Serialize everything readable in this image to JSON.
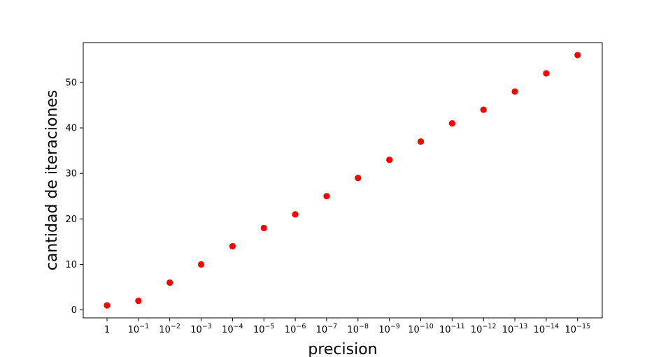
{
  "chart_data": {
    "type": "scatter",
    "title": "",
    "xlabel": "precision",
    "ylabel": "cantidad de iteraciones",
    "x_categories": [
      {
        "base": "1",
        "exp": ""
      },
      {
        "base": "10",
        "exp": "−1"
      },
      {
        "base": "10",
        "exp": "−2"
      },
      {
        "base": "10",
        "exp": "−3"
      },
      {
        "base": "10",
        "exp": "−4"
      },
      {
        "base": "10",
        "exp": "−5"
      },
      {
        "base": "10",
        "exp": "−6"
      },
      {
        "base": "10",
        "exp": "−7"
      },
      {
        "base": "10",
        "exp": "−8"
      },
      {
        "base": "10",
        "exp": "−9"
      },
      {
        "base": "10",
        "exp": "−10"
      },
      {
        "base": "10",
        "exp": "−11"
      },
      {
        "base": "10",
        "exp": "−12"
      },
      {
        "base": "10",
        "exp": "−13"
      },
      {
        "base": "10",
        "exp": "−14"
      },
      {
        "base": "10",
        "exp": "−15"
      }
    ],
    "series": [
      {
        "color": "#ff0000",
        "values": [
          1,
          2,
          6,
          10,
          14,
          18,
          21,
          25,
          29,
          33,
          37,
          41,
          44,
          48,
          52,
          56
        ]
      }
    ],
    "y_ticks": [
      0,
      10,
      20,
      30,
      40,
      50
    ],
    "ylim": [
      -1.75,
      58.75
    ],
    "grid": false,
    "legend": "none"
  }
}
